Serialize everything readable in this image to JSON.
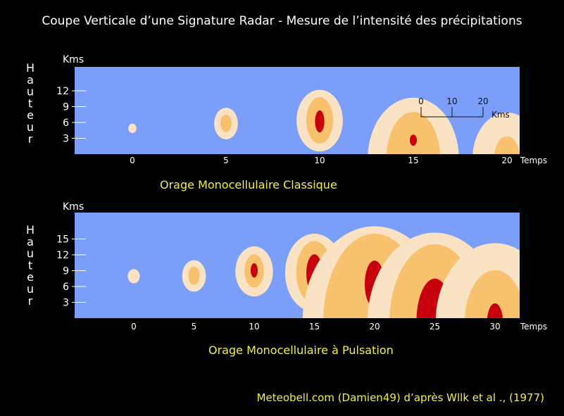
{
  "title": "Coupe Verticale d’une Signature Radar - Mesure de l’intensité des précipitations",
  "credit": "Meteobell.com (Damien49) d’après Wllk et al ., (1977)",
  "colors": {
    "background": "#000000",
    "panel": "#7b9ef8",
    "light": "#fae3c4",
    "medium": "#f8c16e",
    "core": "#c8000e",
    "caption": "#f0f046"
  },
  "chart_data": [
    {
      "type": "diagram",
      "caption": "Orage Monocellulaire Classique",
      "ylabel": "Hauteur",
      "yunit": "Kms",
      "yticks": [
        "3",
        "6",
        "9",
        "12"
      ],
      "xlabel": "Temps",
      "xticks": [
        "0",
        "5",
        "10",
        "15",
        "20"
      ],
      "scale_bar": {
        "ticks": [
          "0",
          "10",
          "20"
        ],
        "unit": "Kms"
      },
      "cells": [
        {
          "time": 0,
          "layers": [
            {
              "level": "light",
              "bottom": 4.0,
              "top": 5.8
            }
          ]
        },
        {
          "time": 5,
          "layers": [
            {
              "level": "light",
              "bottom": 2.8,
              "top": 8.8
            },
            {
              "level": "medium",
              "bottom": 4.2,
              "top": 7.5
            }
          ]
        },
        {
          "time": 10,
          "layers": [
            {
              "level": "light",
              "bottom": 0.5,
              "top": 12.2
            },
            {
              "level": "medium",
              "bottom": 2.0,
              "top": 10.8
            },
            {
              "level": "core",
              "bottom": 4.1,
              "top": 8.3
            }
          ]
        },
        {
          "time": 15,
          "layers": [
            {
              "level": "light",
              "bottom": 0.0,
              "top": 10.7
            },
            {
              "level": "medium",
              "bottom": 0.0,
              "top": 8.0
            },
            {
              "level": "core",
              "bottom": 1.6,
              "top": 3.7
            }
          ]
        },
        {
          "time": 20,
          "layers": [
            {
              "level": "light",
              "bottom": 0.0,
              "top": 7.9
            },
            {
              "level": "medium",
              "bottom": 0.0,
              "top": 3.4
            }
          ]
        }
      ]
    },
    {
      "type": "diagram",
      "caption": "Orage Monocellulaire à Pulsation",
      "ylabel": "Hauteur",
      "yunit": "Kms",
      "yticks": [
        "3",
        "6",
        "9",
        "12",
        "15"
      ],
      "xlabel": "Temps",
      "xticks": [
        "0",
        "5",
        "10",
        "15",
        "20",
        "25",
        "30"
      ],
      "cells": [
        {
          "time": 0,
          "layers": [
            {
              "level": "light",
              "bottom": 6.6,
              "top": 9.3
            }
          ]
        },
        {
          "time": 5,
          "layers": [
            {
              "level": "light",
              "bottom": 5.0,
              "top": 11.0
            },
            {
              "level": "medium",
              "bottom": 6.3,
              "top": 9.8
            }
          ]
        },
        {
          "time": 10,
          "layers": [
            {
              "level": "light",
              "bottom": 4.1,
              "top": 13.6
            },
            {
              "level": "medium",
              "bottom": 5.8,
              "top": 12.1
            },
            {
              "level": "core",
              "bottom": 7.7,
              "top": 10.4
            }
          ]
        },
        {
          "time": 15,
          "layers": [
            {
              "level": "light",
              "bottom": 1.2,
              "top": 16.0
            },
            {
              "level": "medium",
              "bottom": 2.7,
              "top": 14.6
            },
            {
              "level": "core",
              "bottom": 4.8,
              "top": 12.1
            }
          ]
        },
        {
          "time": 20,
          "layers": [
            {
              "level": "light",
              "bottom": 0.0,
              "top": 17.4
            },
            {
              "level": "medium",
              "bottom": 0.0,
              "top": 16.0
            },
            {
              "level": "core",
              "bottom": 2.0,
              "top": 10.9
            }
          ]
        },
        {
          "time": 25,
          "layers": [
            {
              "level": "light",
              "bottom": 0.0,
              "top": 16.2
            },
            {
              "level": "medium",
              "bottom": 0.0,
              "top": 14.0
            },
            {
              "level": "core",
              "bottom": 0.0,
              "top": 7.5
            }
          ]
        },
        {
          "time": 30,
          "layers": [
            {
              "level": "light",
              "bottom": 0.0,
              "top": 14.2
            },
            {
              "level": "medium",
              "bottom": 0.0,
              "top": 9.1
            },
            {
              "level": "core",
              "bottom": 0.0,
              "top": 2.8
            }
          ]
        }
      ]
    }
  ]
}
